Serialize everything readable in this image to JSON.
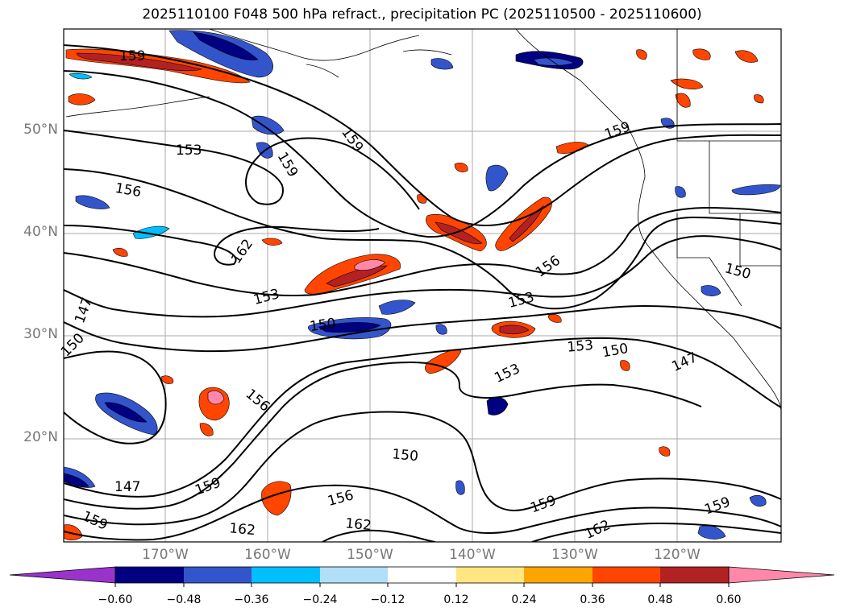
{
  "title": "2025110100 F048 500 hPa refract., precipitation PC (2025110500 - 2025110600)",
  "map": {
    "lat_labels": [
      "50°N",
      "40°N",
      "30°N",
      "20°N"
    ],
    "lon_labels": [
      "170°W",
      "160°W",
      "150°W",
      "140°W",
      "130°W",
      "120°W"
    ],
    "contour_labels": [
      "159",
      "153",
      "159",
      "159",
      "156",
      "162",
      "153",
      "150",
      "147",
      "150",
      "156",
      "153",
      "153",
      "150",
      "153",
      "147",
      "150",
      "156",
      "150",
      "147",
      "159",
      "159",
      "156",
      "162",
      "162",
      "159",
      "162",
      "159",
      "159"
    ],
    "contour_levels": [
      147,
      150,
      153,
      156,
      159,
      162
    ]
  },
  "colorbar": {
    "ticks": [
      "−0.60",
      "−0.48",
      "−0.36",
      "−0.24",
      "−0.12",
      "0.12",
      "0.24",
      "0.36",
      "0.48",
      "0.60"
    ],
    "colors": [
      "#9933cc",
      "#000080",
      "#3355cc",
      "#00bfff",
      "#b0e0f8",
      "#ffffff",
      "#ffe680",
      "#ffa500",
      "#ff4500",
      "#b22222",
      "#ff88aa"
    ]
  }
}
